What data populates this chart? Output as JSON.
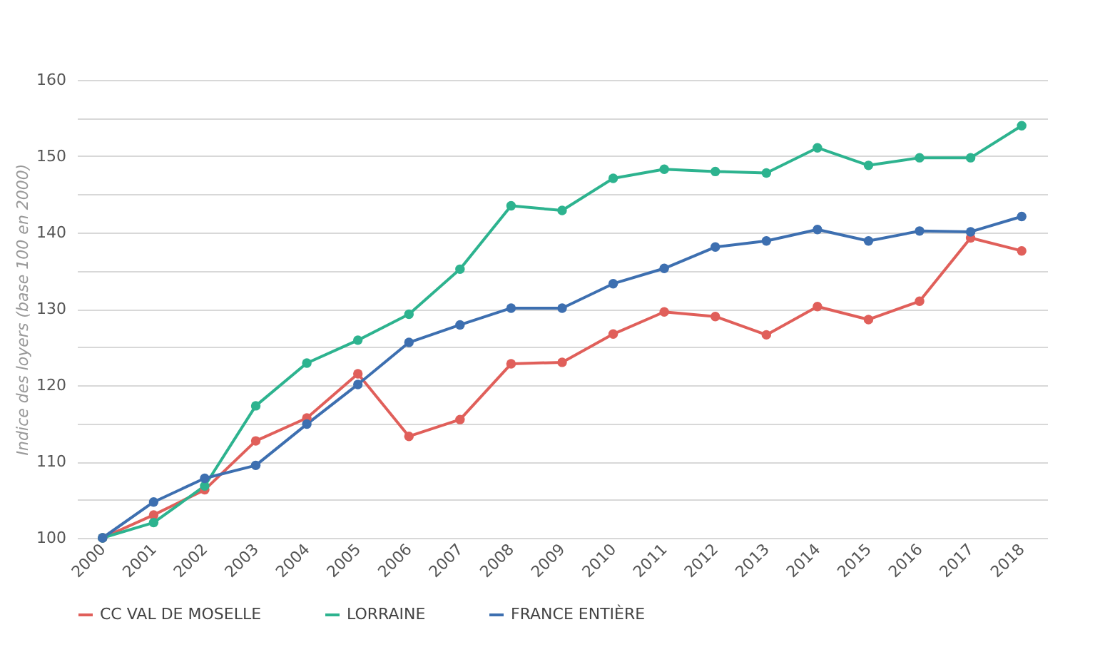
{
  "chart_data": {
    "type": "line",
    "ylabel": "Indice des loyers (base 100 en 2000)",
    "categories": [
      "2000",
      "2001",
      "2002",
      "2003",
      "2004",
      "2005",
      "2006",
      "2007",
      "2008",
      "2009",
      "2010",
      "2011",
      "2012",
      "2013",
      "2014",
      "2015",
      "2016",
      "2017",
      "2018"
    ],
    "series": [
      {
        "name": "CC VAL DE MOSELLE",
        "color": "#e05f5a",
        "values": [
          100,
          103,
          106.3,
          112.7,
          115.7,
          121.5,
          113.3,
          115.5,
          122.8,
          123,
          126.7,
          129.6,
          129,
          126.6,
          130.3,
          128.6,
          131,
          139.3,
          137.6
        ]
      },
      {
        "name": "LORRAINE",
        "color": "#2db38f",
        "values": [
          100,
          102,
          106.8,
          117.3,
          122.9,
          125.9,
          129.3,
          135.2,
          143.5,
          142.9,
          147.1,
          148.3,
          148,
          147.8,
          151.1,
          148.8,
          149.8,
          149.8,
          154
        ]
      },
      {
        "name": "FRANCE ENTIÈRE",
        "color": "#3d6fb0",
        "values": [
          100,
          104.7,
          107.8,
          109.5,
          114.9,
          120.1,
          125.6,
          127.9,
          130.1,
          130.1,
          133.3,
          135.3,
          138.1,
          138.9,
          140.4,
          138.9,
          140.2,
          140.1,
          142.1
        ]
      }
    ],
    "ylim": [
      100,
      160
    ],
    "yticks": [
      100,
      {
        "value": 105,
        "label": null
      },
      110,
      {
        "value": 115,
        "label": null
      },
      120,
      {
        "value": 125,
        "label": null
      },
      130,
      {
        "value": 135,
        "label": null
      },
      140,
      {
        "value": 145,
        "label": null
      },
      150,
      {
        "value": 155,
        "label": null
      },
      160
    ],
    "grid": "y",
    "legend": "bottom left",
    "marker": "circle",
    "line_style": "solid"
  }
}
